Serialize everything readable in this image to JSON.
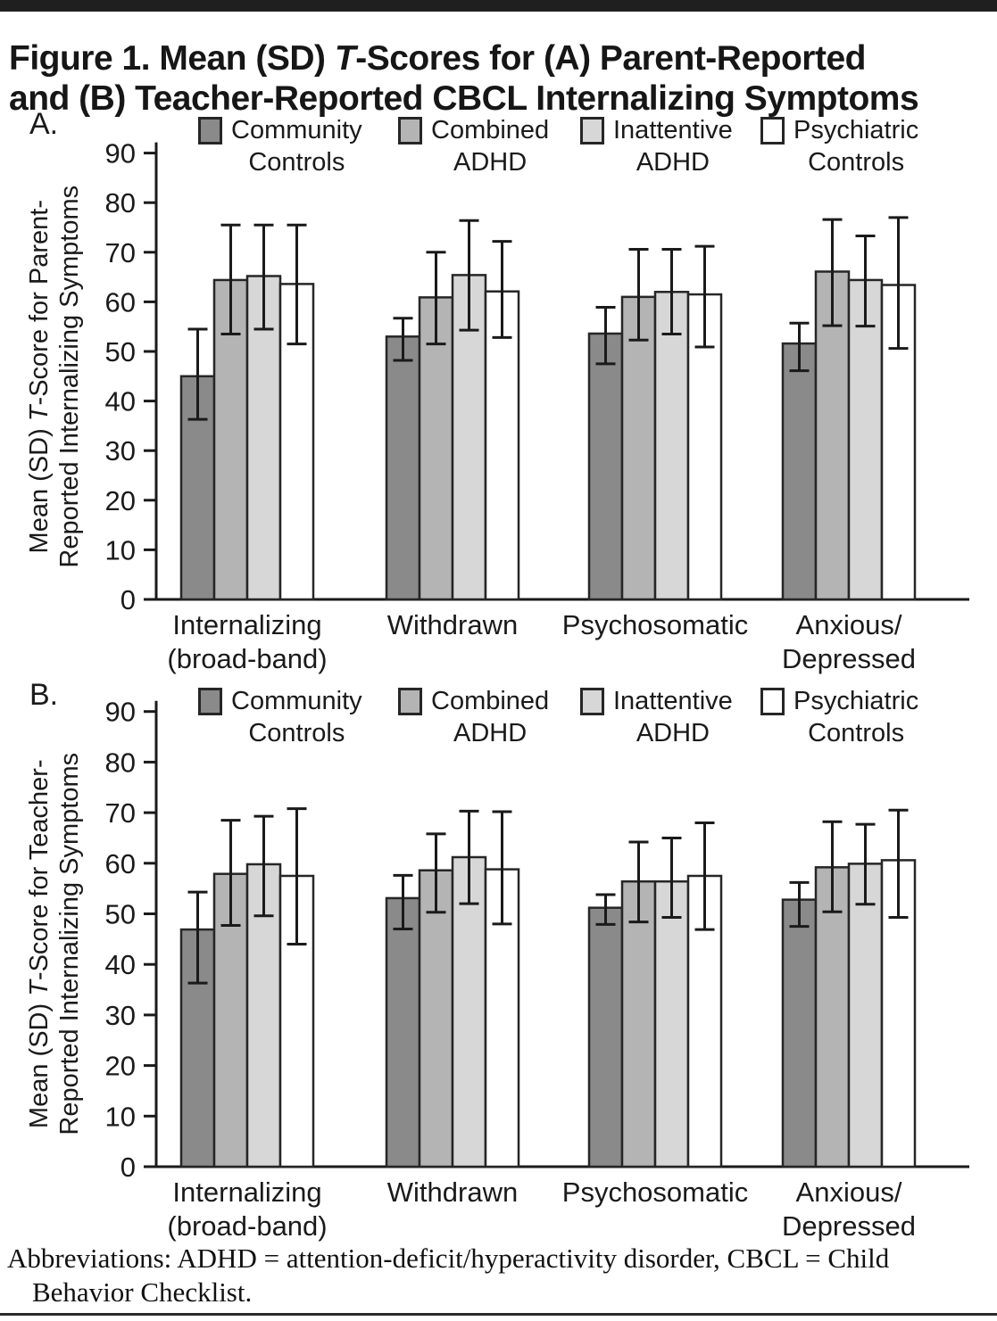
{
  "page": {
    "title": {
      "pre": "Figure 1. Mean (SD) ",
      "italic": "T",
      "post": "-Scores for (A) Parent-Reported",
      "line2": "and (B) Teacher-Reported CBCL Internalizing Symptoms"
    },
    "footnote": {
      "line1": "Abbreviations: ADHD = attention-deficit/hyperactivity disorder, CBCL = Child",
      "line2": "Behavior Checklist."
    }
  },
  "colors": {
    "bar_border": "#262626",
    "axis": "#1a1a1a",
    "error_bar": "#1a1a1a",
    "rule": "#1f1f1f",
    "community_controls": "#8a8a8a",
    "combined_adhd": "#b4b4b4",
    "inattentive_adhd": "#d7d7d7",
    "psychiatric_controls": "#ffffff"
  },
  "legend": {
    "items": [
      {
        "line1": "Community",
        "line2": "Controls",
        "fill": "#8a8a8a"
      },
      {
        "line1": "Combined",
        "line2": "ADHD",
        "fill": "#b4b4b4"
      },
      {
        "line1": "Inattentive",
        "line2": "ADHD",
        "fill": "#d7d7d7"
      },
      {
        "line1": "Psychiatric",
        "line2": "Controls",
        "fill": "#ffffff"
      }
    ]
  },
  "chart_data": [
    {
      "type": "bar",
      "panel_label": "A.",
      "ylabel": {
        "pre": "Mean (SD) ",
        "italic": "T",
        "post": "-Score for Parent-",
        "line2": "Reported Internalizing Symptoms"
      },
      "ylim": [
        0,
        90
      ],
      "ytick_step": 10,
      "grid": false,
      "legend_position": "top",
      "error_bars": "sd",
      "categories": [
        [
          "Internalizing",
          "(broad-band)"
        ],
        [
          "Withdrawn"
        ],
        [
          "Psychosomatic"
        ],
        [
          "Anxious/",
          "Depressed"
        ]
      ],
      "series": [
        {
          "name": "Community Controls",
          "fill": "#8a8a8a",
          "values": [
            45.0,
            53.0,
            53.6,
            51.6
          ],
          "err_low": [
            36.3,
            48.2,
            47.5,
            46.1
          ],
          "err_high": [
            54.5,
            56.7,
            58.9,
            55.7
          ]
        },
        {
          "name": "Combined ADHD",
          "fill": "#b4b4b4",
          "values": [
            64.4,
            60.9,
            61.0,
            66.1
          ],
          "err_low": [
            53.5,
            51.5,
            52.3,
            55.2
          ],
          "err_high": [
            75.5,
            70.0,
            70.6,
            76.6
          ]
        },
        {
          "name": "Inattentive ADHD",
          "fill": "#d7d7d7",
          "values": [
            65.2,
            65.4,
            62.0,
            64.4
          ],
          "err_low": [
            54.5,
            54.3,
            53.5,
            55.1
          ],
          "err_high": [
            75.5,
            76.4,
            70.6,
            73.3
          ]
        },
        {
          "name": "Psychiatric Controls",
          "fill": "#ffffff",
          "values": [
            63.6,
            62.1,
            61.5,
            63.4
          ],
          "err_low": [
            51.5,
            52.8,
            50.9,
            50.6
          ],
          "err_high": [
            75.5,
            72.2,
            71.2,
            77.0
          ]
        }
      ]
    },
    {
      "type": "bar",
      "panel_label": "B.",
      "ylabel": {
        "pre": "Mean (SD) ",
        "italic": "T",
        "post": "-Score  for Teacher-",
        "line2": "Reported Internalizing Symptoms"
      },
      "ylim": [
        0,
        90
      ],
      "ytick_step": 10,
      "grid": false,
      "legend_position": "top",
      "error_bars": "sd",
      "categories": [
        [
          "Internalizing",
          "(broad-band)"
        ],
        [
          "Withdrawn"
        ],
        [
          "Psychosomatic"
        ],
        [
          "Anxious/",
          "Depressed"
        ]
      ],
      "series": [
        {
          "name": "Community Controls",
          "fill": "#8a8a8a",
          "values": [
            46.9,
            53.1,
            51.2,
            52.8
          ],
          "err_low": [
            36.3,
            47.0,
            47.9,
            47.5
          ],
          "err_high": [
            54.3,
            57.6,
            53.8,
            56.2
          ]
        },
        {
          "name": "Combined ADHD",
          "fill": "#b4b4b4",
          "values": [
            57.9,
            58.6,
            56.4,
            59.2
          ],
          "err_low": [
            47.7,
            50.3,
            48.4,
            50.4
          ],
          "err_high": [
            68.5,
            65.8,
            64.2,
            68.2
          ]
        },
        {
          "name": "Inattentive ADHD",
          "fill": "#d7d7d7",
          "values": [
            59.8,
            61.2,
            56.4,
            59.9
          ],
          "err_low": [
            49.6,
            52.0,
            49.3,
            51.9
          ],
          "err_high": [
            69.3,
            70.3,
            65.0,
            67.7
          ]
        },
        {
          "name": "Psychiatric Controls",
          "fill": "#ffffff",
          "values": [
            57.5,
            58.8,
            57.5,
            60.6
          ],
          "err_low": [
            44.0,
            48.0,
            46.9,
            49.3
          ],
          "err_high": [
            70.8,
            70.2,
            68.0,
            70.5
          ]
        }
      ]
    }
  ]
}
